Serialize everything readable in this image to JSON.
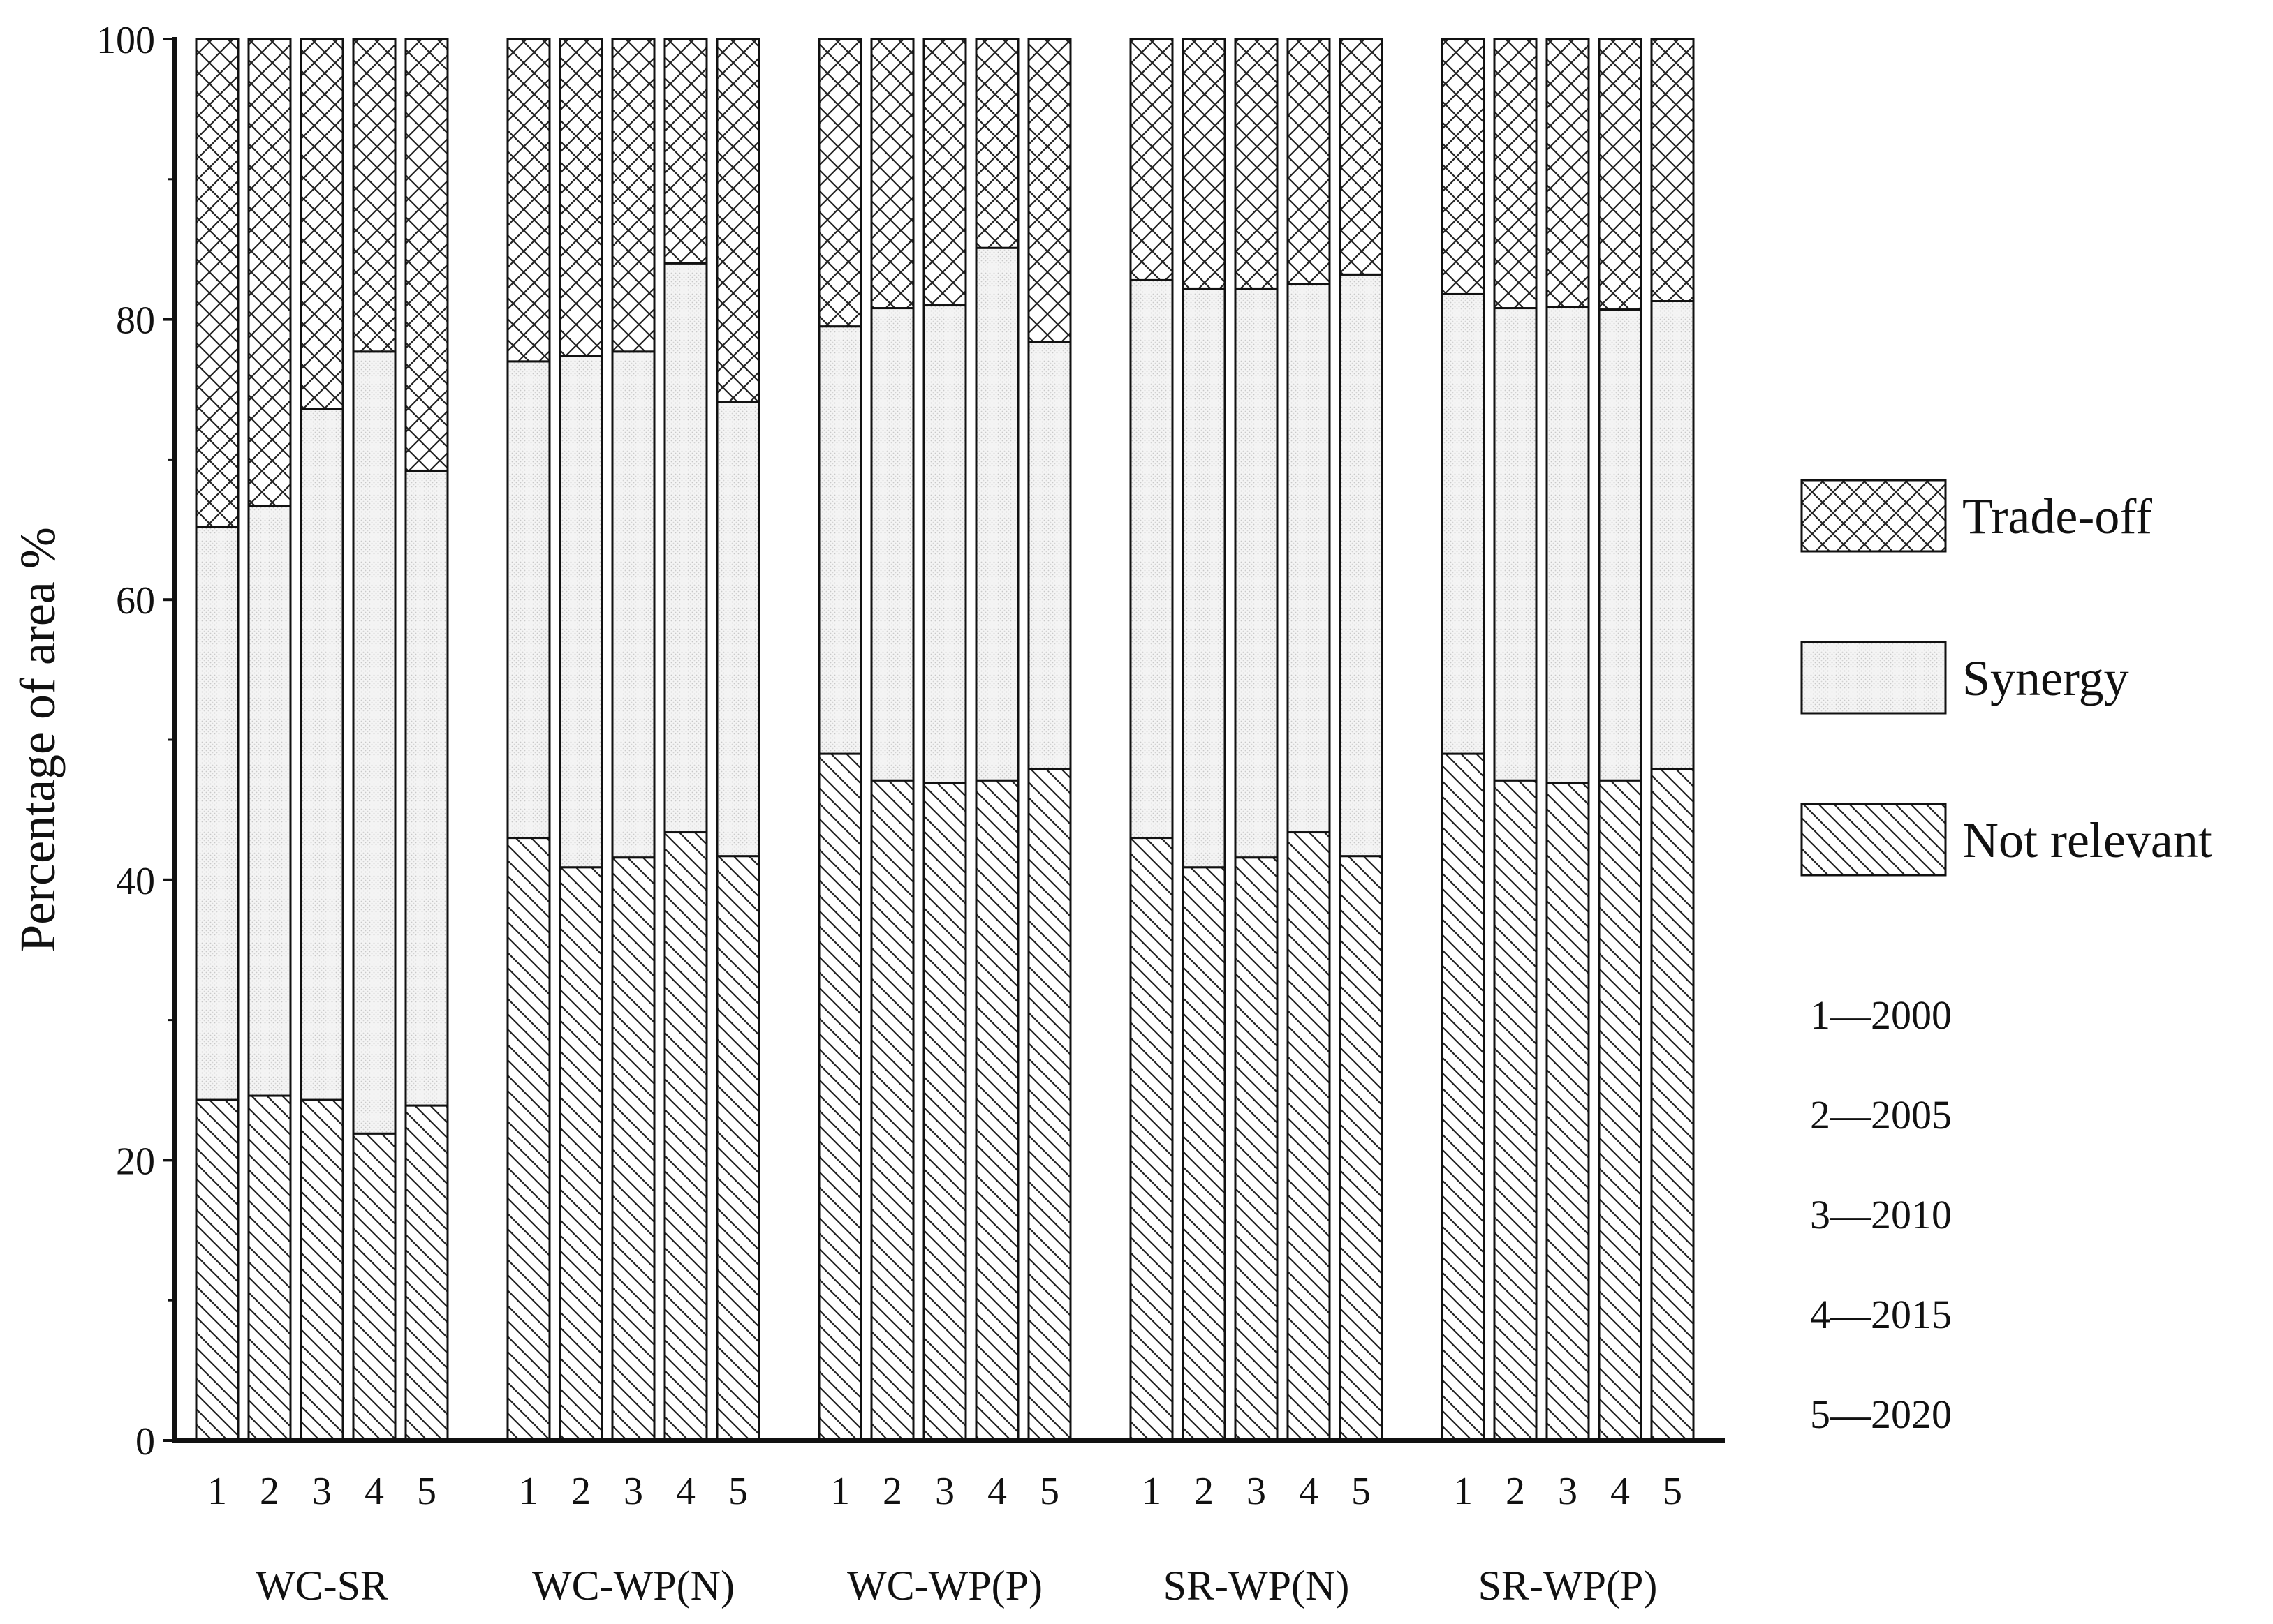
{
  "chart_data": {
    "type": "bar",
    "stacked": true,
    "ylabel": "Percentage of area %",
    "ylim": [
      0,
      100
    ],
    "yticks": [
      0,
      20,
      40,
      60,
      80,
      100
    ],
    "bar_labels": [
      "1",
      "2",
      "3",
      "4",
      "5"
    ],
    "groups": [
      {
        "name": "WC-SR",
        "series": [
          {
            "name": "Not relevant",
            "values": [
              24.3,
              24.6,
              24.3,
              21.9,
              23.9
            ]
          },
          {
            "name": "Synergy",
            "values": [
              40.9,
              42.1,
              49.3,
              55.8,
              45.3
            ]
          },
          {
            "name": "Trade-off",
            "values": [
              34.8,
              33.3,
              26.4,
              22.3,
              30.8
            ]
          }
        ]
      },
      {
        "name": "WC-WP(N)",
        "series": [
          {
            "name": "Not relevant",
            "values": [
              43.0,
              40.9,
              41.6,
              43.4,
              41.7
            ]
          },
          {
            "name": "Synergy",
            "values": [
              34.0,
              36.5,
              36.1,
              40.6,
              32.4
            ]
          },
          {
            "name": "Trade-off",
            "values": [
              23.0,
              22.6,
              22.3,
              16.0,
              25.9
            ]
          }
        ]
      },
      {
        "name": "WC-WP(P)",
        "series": [
          {
            "name": "Not relevant",
            "values": [
              49.0,
              47.1,
              46.9,
              47.1,
              47.9
            ]
          },
          {
            "name": "Synergy",
            "values": [
              30.5,
              33.7,
              34.1,
              38.0,
              30.5
            ]
          },
          {
            "name": "Trade-off",
            "values": [
              20.5,
              19.2,
              19.0,
              14.9,
              21.6
            ]
          }
        ]
      },
      {
        "name": "SR-WP(N)",
        "series": [
          {
            "name": "Not relevant",
            "values": [
              43.0,
              40.9,
              41.6,
              43.4,
              41.7
            ]
          },
          {
            "name": "Synergy",
            "values": [
              39.8,
              41.3,
              40.6,
              39.1,
              41.5
            ]
          },
          {
            "name": "Trade-off",
            "values": [
              17.2,
              17.8,
              17.8,
              17.5,
              16.8
            ]
          }
        ]
      },
      {
        "name": "SR-WP(P)",
        "series": [
          {
            "name": "Not relevant",
            "values": [
              49.0,
              47.1,
              46.9,
              47.1,
              47.9
            ]
          },
          {
            "name": "Synergy",
            "values": [
              32.8,
              33.7,
              34.0,
              33.6,
              33.4
            ]
          },
          {
            "name": "Trade-off",
            "values": [
              18.2,
              19.2,
              19.1,
              19.3,
              18.7
            ]
          }
        ]
      }
    ],
    "legend": {
      "placement": "right",
      "entries": [
        {
          "name": "Trade-off",
          "pattern": "crosshatch"
        },
        {
          "name": "Synergy",
          "pattern": "light-dots"
        },
        {
          "name": "Not relevant",
          "pattern": "diagonal"
        }
      ]
    },
    "year_notes": [
      "1—2000",
      "2—2005",
      "3—2010",
      "4—2015",
      "5—2020"
    ],
    "grid": false
  }
}
